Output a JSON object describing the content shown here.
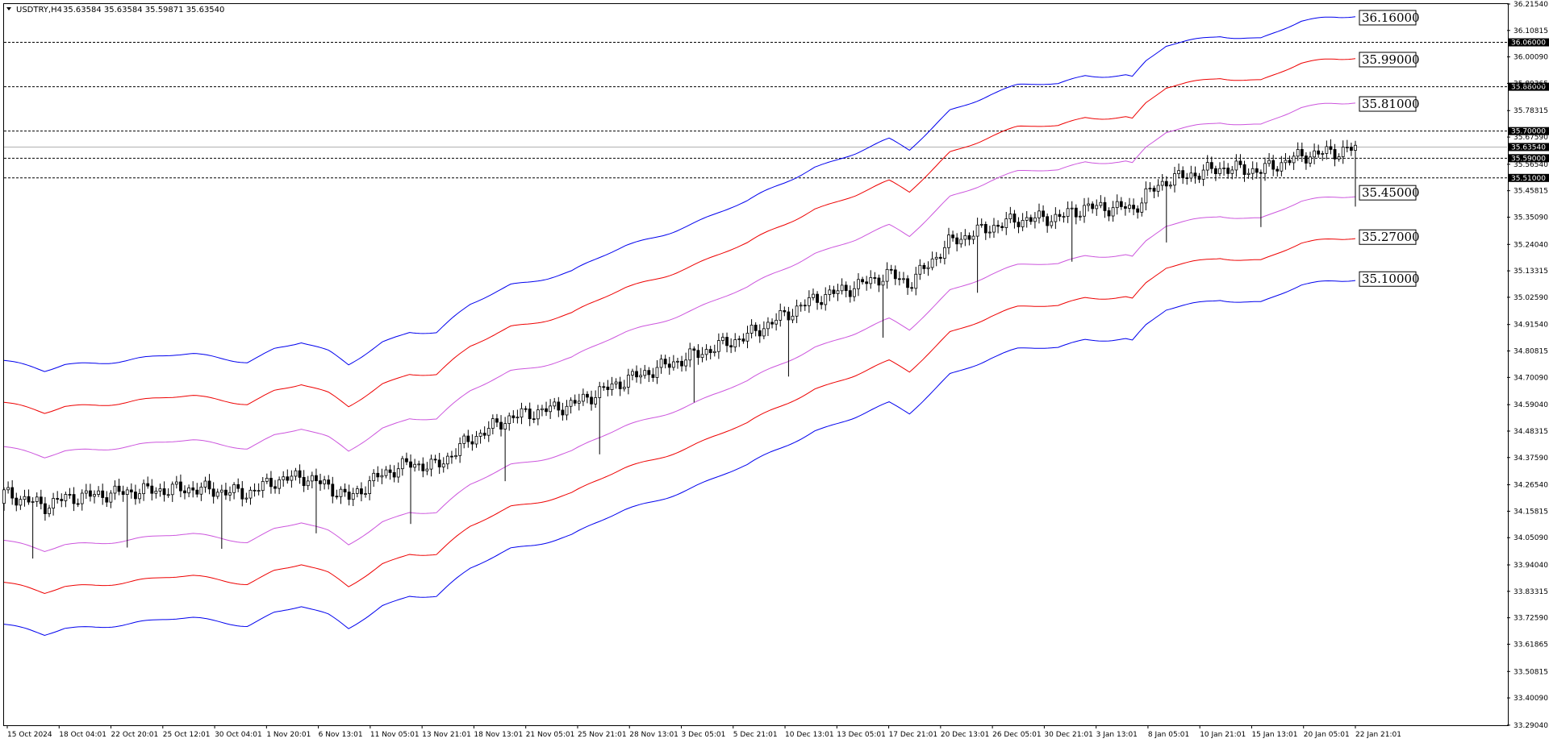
{
  "header": {
    "symbol_timeframe": "USDTRY,H4",
    "ohlc": "35.63584 35.63584 35.59871 35.63540"
  },
  "chart_data": {
    "type": "candlestick",
    "symbol": "USDTRY",
    "timeframe": "H4",
    "ylim": [
      33.29,
      36.2154
    ],
    "y_ticks": [
      "36.21540",
      "36.10815",
      "36.00090",
      "35.89365",
      "35.78315",
      "35.67590",
      "35.56540",
      "35.45815",
      "35.35090",
      "35.24040",
      "35.13315",
      "35.02590",
      "34.91540",
      "34.80815",
      "34.70090",
      "34.59040",
      "34.48315",
      "34.37590",
      "34.26540",
      "34.15815",
      "34.05090",
      "33.94040",
      "33.83315",
      "33.72590",
      "33.61865",
      "33.50815",
      "33.40090",
      "33.29040"
    ],
    "x_ticks": [
      "15 Oct 2024",
      "18 Oct 04:01",
      "22 Oct 20:01",
      "25 Oct 12:01",
      "30 Oct 04:01",
      "1 Nov 20:01",
      "6 Nov 13:01",
      "11 Nov 05:01",
      "13 Nov 21:01",
      "18 Nov 13:01",
      "21 Nov 05:01",
      "25 Nov 21:01",
      "28 Nov 13:01",
      "3 Dec 05:01",
      "5 Dec 21:01",
      "10 Dec 13:01",
      "13 Dec 05:01",
      "17 Dec 21:01",
      "20 Dec 13:01",
      "26 Dec 05:01",
      "30 Dec 21:01",
      "3 Jan 13:01",
      "8 Jan 05:01",
      "10 Jan 21:01",
      "15 Jan 13:01",
      "20 Jan 05:01",
      "22 Jan 21:01"
    ],
    "horizontal_lines": [
      {
        "value": 36.06,
        "label": "36.06000",
        "style": "dashed"
      },
      {
        "value": 35.88,
        "label": "35.88000",
        "style": "dashed"
      },
      {
        "value": 35.7,
        "label": "35.70000",
        "style": "dashed"
      },
      {
        "value": 35.59,
        "label": "35.59000",
        "style": "dashed"
      },
      {
        "value": 35.51,
        "label": "35.51000",
        "style": "dashed"
      },
      {
        "value": 35.6354,
        "label": "35.63540",
        "style": "solid-grey"
      }
    ],
    "band_labels": [
      {
        "value": 36.16,
        "label": "36.16000"
      },
      {
        "value": 35.99,
        "label": "35.99000"
      },
      {
        "value": 35.81,
        "label": "35.81000"
      },
      {
        "value": 35.45,
        "label": "35.45000"
      },
      {
        "value": 35.27,
        "label": "35.27000"
      },
      {
        "value": 35.1,
        "label": "35.10000"
      }
    ],
    "bands": {
      "anchors_x": [
        0,
        0.03,
        0.045,
        0.06,
        0.1,
        0.14,
        0.18,
        0.2,
        0.22,
        0.24,
        0.255,
        0.28,
        0.3,
        0.32,
        0.345,
        0.375,
        0.42,
        0.46,
        0.5,
        0.55,
        0.6,
        0.63,
        0.655,
        0.67,
        0.7,
        0.73,
        0.75,
        0.78,
        0.8,
        0.83,
        0.835,
        0.845,
        0.86,
        0.9,
        0.93,
        0.96,
        0.99,
        1.0
      ],
      "middle": [
        34.11,
        34.06,
        34.09,
        34.1,
        34.12,
        34.13,
        34.11,
        34.16,
        34.18,
        34.14,
        34.09,
        34.19,
        34.23,
        34.22,
        34.33,
        34.42,
        34.47,
        34.57,
        34.65,
        34.75,
        34.9,
        34.95,
        35.0,
        34.96,
        35.13,
        35.19,
        35.22,
        35.23,
        35.27,
        35.27,
        35.26,
        35.32,
        35.38,
        35.43,
        35.42,
        35.48,
        35.5,
        35.51
      ]
    },
    "colors": {
      "outer_band": "#0000ee",
      "middle_band": "#ee0000",
      "inner_band": "#cc55dd",
      "candles": "#000000",
      "level_lines": "#000000",
      "current_price_line": "#b0b0b0"
    },
    "last_price": "35.63540",
    "grid": false
  }
}
